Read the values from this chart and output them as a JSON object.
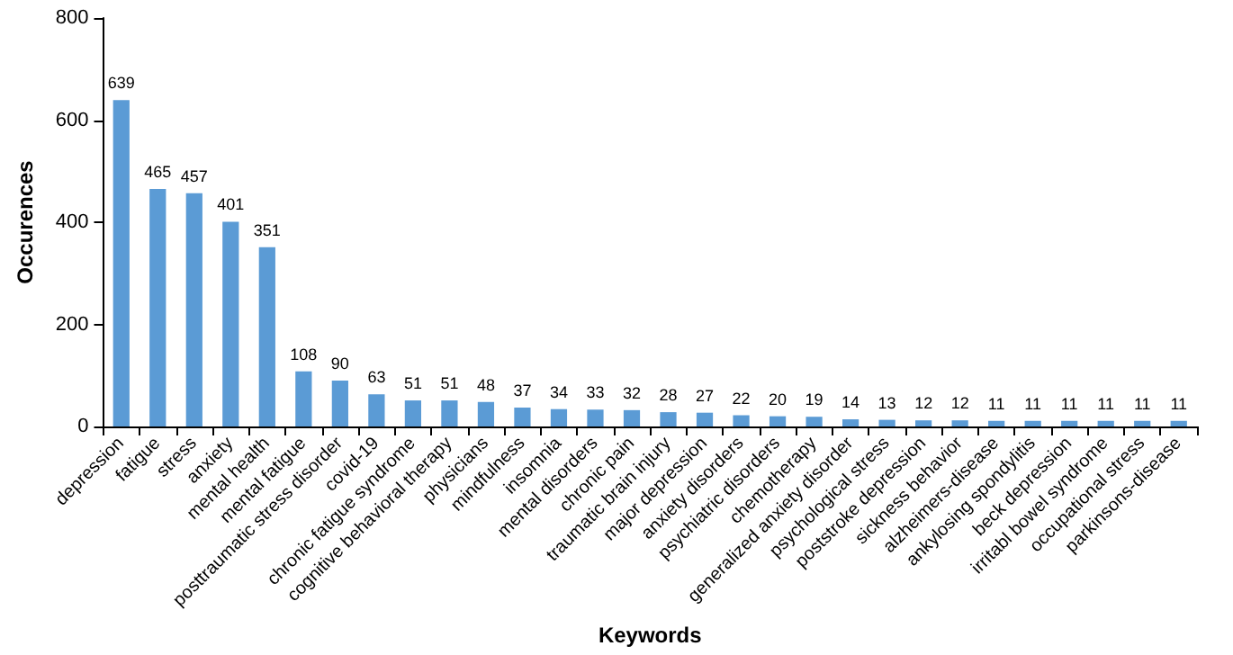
{
  "chart_data": {
    "type": "bar",
    "xlabel": "Keywords",
    "ylabel": "Occurences",
    "categories": [
      "depression",
      "fatigue",
      "stress",
      "anxiety",
      "mental health",
      "mental fatigue",
      "posttraumatic stress disorder",
      "covid-19",
      "chronic fatigue syndrome",
      "cognitive behavioral therapy",
      "physicians",
      "mindfulness",
      "insomnia",
      "mental disorders",
      "chronic pain",
      "traumatic brain injury",
      "major depression",
      "anxiety disorders",
      "psychiatric disorders",
      "chemotherapy",
      "generalized anxiety disorder",
      "psychological stress",
      "poststroke depression",
      "sickness behavior",
      "alzheimers-disease",
      "ankylosing spondylitis",
      "beck depression",
      "irritabl bowel syndrome",
      "occupational stress",
      "parkinsons-disease"
    ],
    "values": [
      639,
      465,
      457,
      401,
      351,
      108,
      90,
      63,
      51,
      51,
      48,
      37,
      34,
      33,
      32,
      28,
      27,
      22,
      20,
      19,
      14,
      13,
      12,
      12,
      11,
      11,
      11,
      11,
      11,
      11
    ],
    "color": "#5b9bd5",
    "data_labels": true,
    "ylim": [
      0,
      800
    ],
    "yticks": [
      0,
      200,
      400,
      600,
      800
    ]
  }
}
